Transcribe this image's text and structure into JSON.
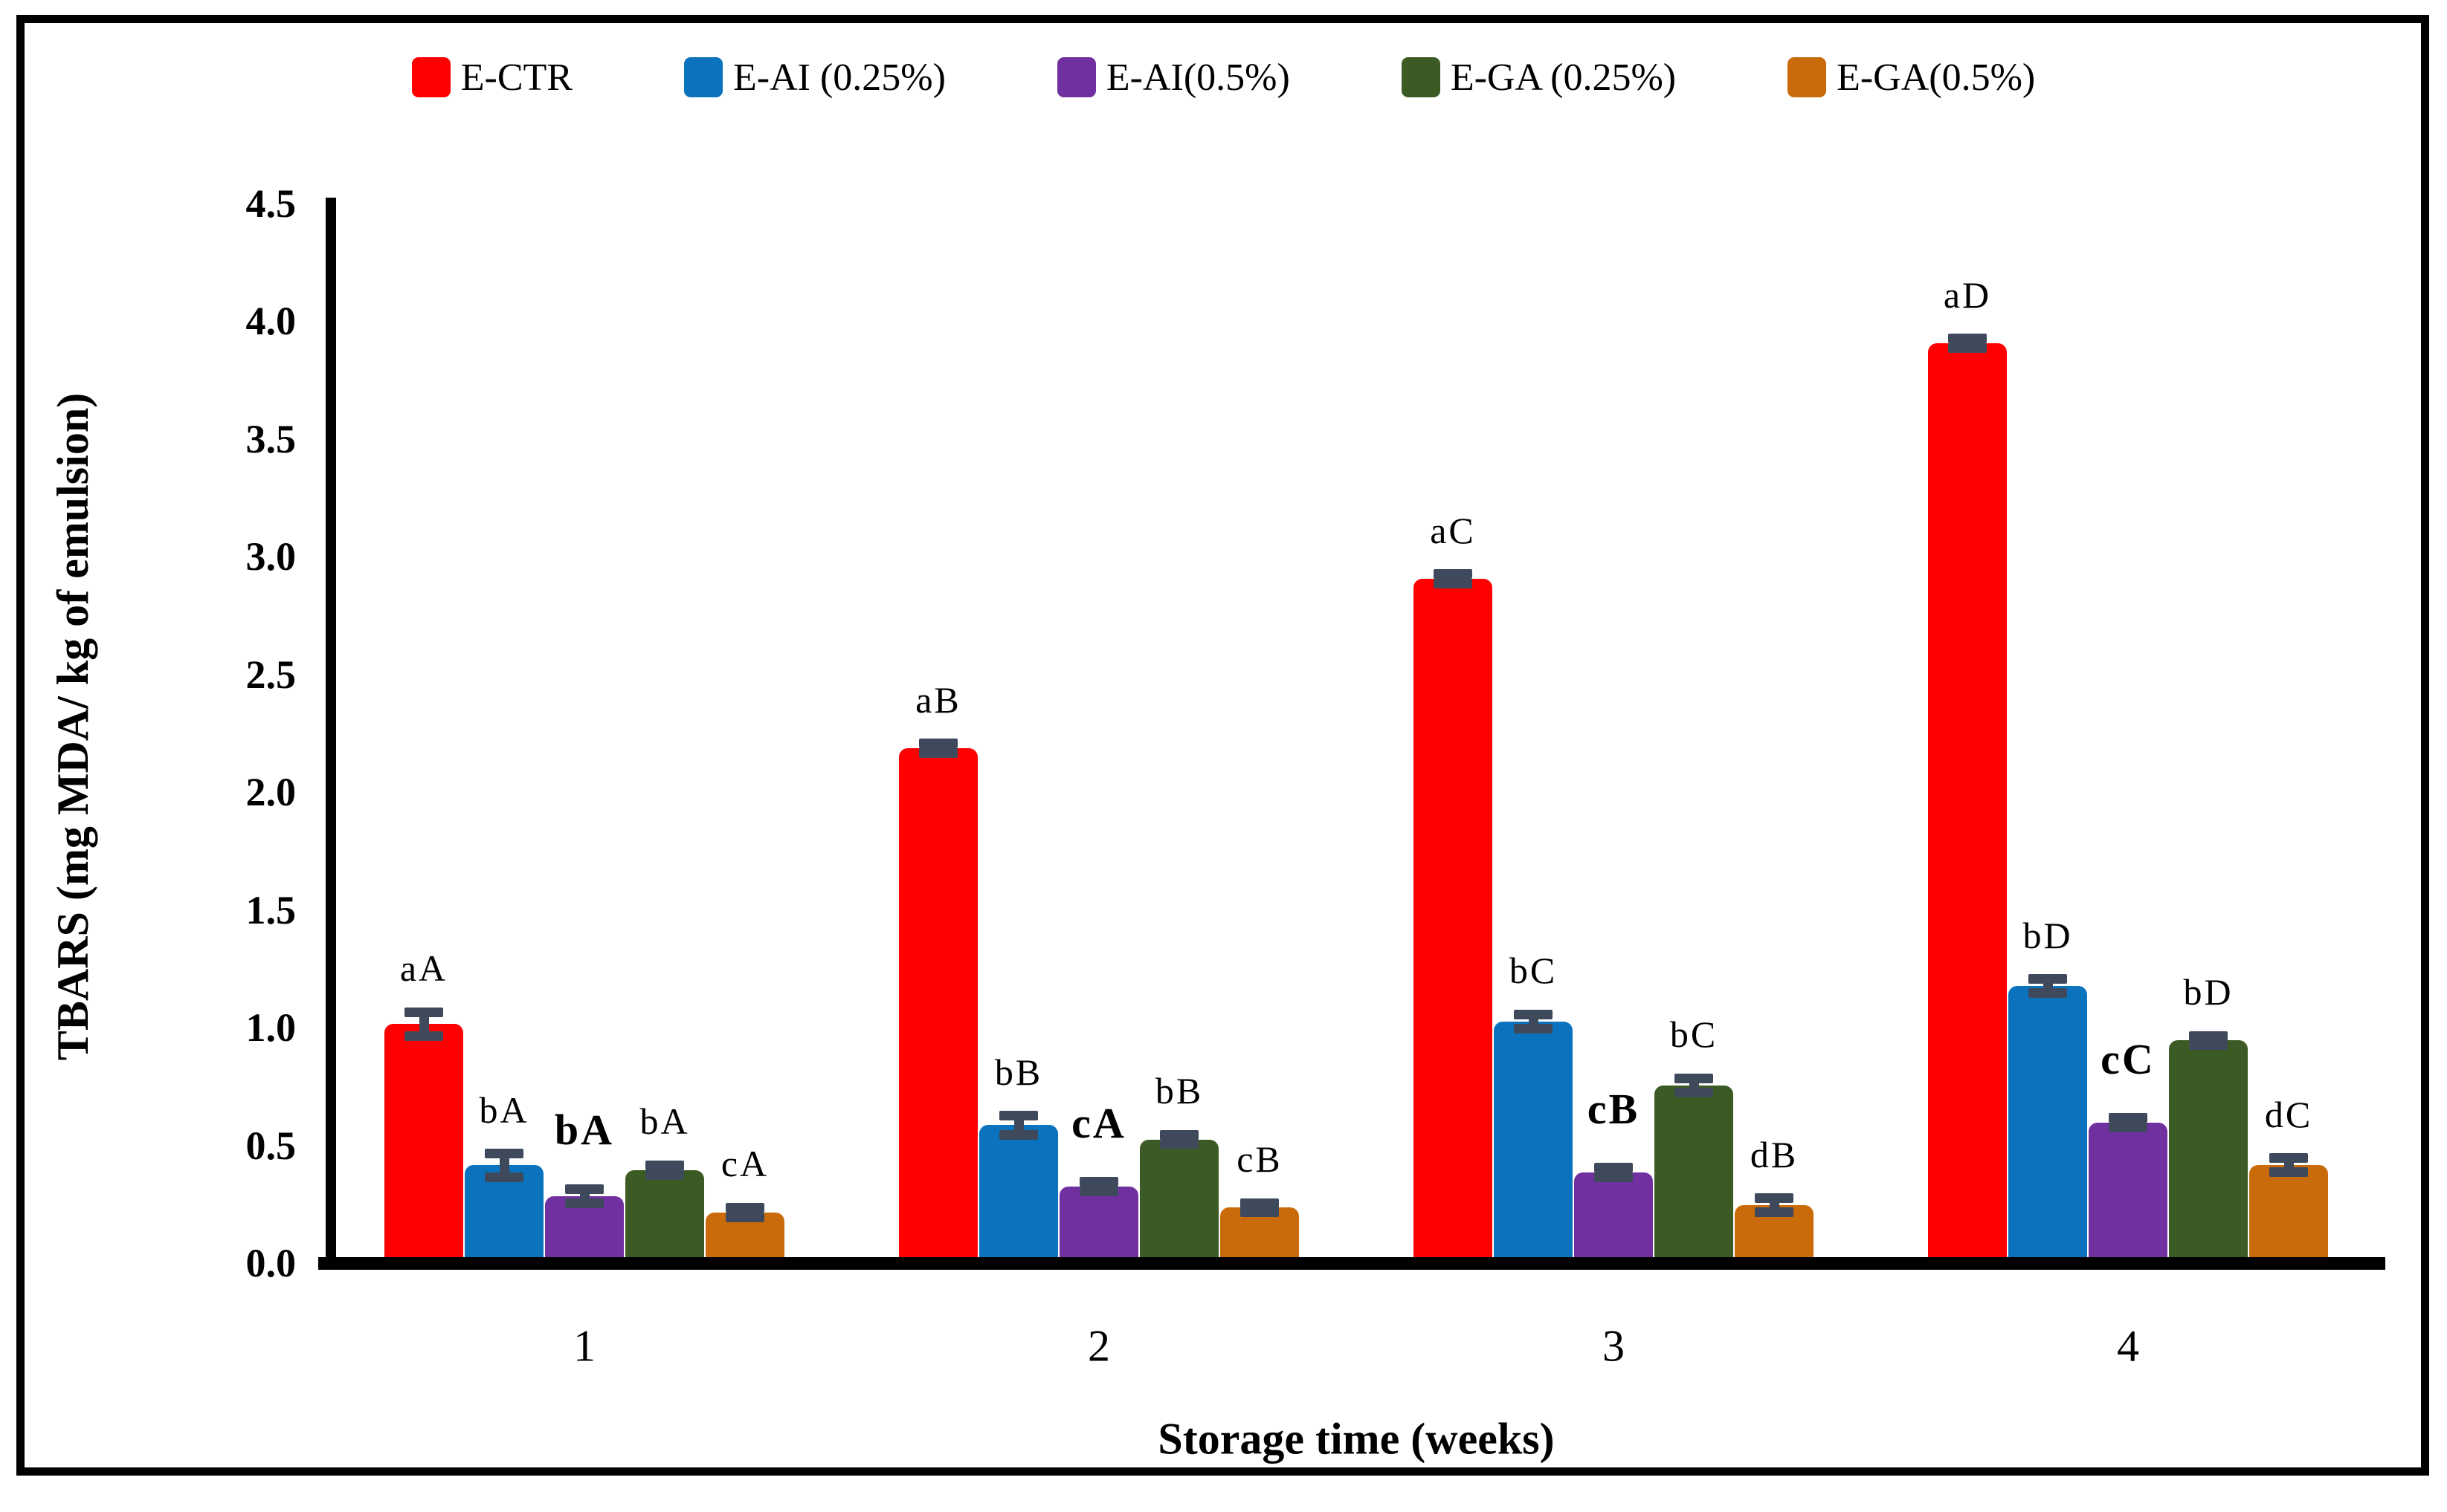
{
  "figure": {
    "background": "#ffffff",
    "border_color": "#000000"
  },
  "legend": {
    "position": "top",
    "items": [
      {
        "label": "E-CTR",
        "color": "#ff0000"
      },
      {
        "label": "E-AI (0.25%)",
        "color": "#0b72be"
      },
      {
        "label": "E-AI(0.5%)",
        "color": "#7030a0"
      },
      {
        "label": "E-GA (0.25%)",
        "color": "#3c5a24"
      },
      {
        "label": "E-GA(0.5%)",
        "color": "#c96b0a"
      }
    ]
  },
  "chart_data": {
    "type": "bar",
    "title": "",
    "xlabel": "Storage time (weeks)",
    "ylabel": "TBARS (mg MDA/ kg of emulsion)",
    "categories": [
      "1",
      "2",
      "3",
      "4"
    ],
    "ylim": [
      0,
      4.5
    ],
    "ytick_step": 0.5,
    "yticks": [
      "0.0",
      "0.5",
      "1.0",
      "1.5",
      "2.0",
      "2.5",
      "3.0",
      "3.5",
      "4.0",
      "4.5"
    ],
    "grid": false,
    "legend_position": "top",
    "error_bar_color": "#3e4a5c",
    "series": [
      {
        "name": "E-CTR",
        "color": "#ff0000",
        "values": [
          0.99,
          2.16,
          2.88,
          3.88
        ],
        "errors": [
          0.05,
          0.02,
          0.02,
          0.02
        ],
        "point_labels": [
          "aA",
          "aB",
          "aC",
          "aD"
        ],
        "bold_labels": false
      },
      {
        "name": "E-AI (0.25%)",
        "color": "#0b72be",
        "values": [
          0.39,
          0.56,
          1.0,
          1.15
        ],
        "errors": [
          0.05,
          0.04,
          0.03,
          0.03
        ],
        "point_labels": [
          "bA",
          "bB",
          "bC",
          "bD"
        ],
        "bold_labels": false
      },
      {
        "name": "E-AI(0.5%)",
        "color": "#7030a0",
        "values": [
          0.26,
          0.3,
          0.36,
          0.57
        ],
        "errors": [
          0.03,
          0.02,
          0.02,
          0.02
        ],
        "point_labels": [
          "bA",
          "cA",
          "cB",
          "cC"
        ],
        "bold_labels": true
      },
      {
        "name": "E-GA (0.25%)",
        "color": "#3c5a24",
        "values": [
          0.37,
          0.5,
          0.73,
          0.92
        ],
        "errors": [
          0.02,
          0.02,
          0.03,
          0.02
        ],
        "point_labels": [
          "bA",
          "bB",
          "bC",
          "bD"
        ],
        "bold_labels": false
      },
      {
        "name": "E-GA(0.5%)",
        "color": "#c96b0a",
        "values": [
          0.19,
          0.21,
          0.22,
          0.39
        ],
        "errors": [
          0.02,
          0.02,
          0.03,
          0.03
        ],
        "point_labels": [
          "cA",
          "cB",
          "dB",
          "dC"
        ],
        "bold_labels": false
      }
    ]
  }
}
